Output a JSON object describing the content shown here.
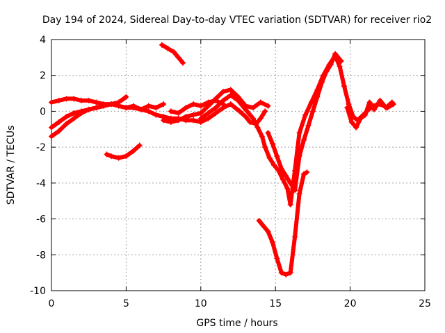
{
  "chart_data": {
    "type": "scatter",
    "title": "Day 194 of 2024, Sidereal Day-to-day VTEC variation (SDTVAR) for receiver rio2",
    "xlabel": "GPS time / hours",
    "ylabel": "SDTVAR / TECUs",
    "xlim": [
      0,
      25
    ],
    "ylim": [
      -10,
      4
    ],
    "xticks": [
      "0",
      "5",
      "10",
      "15",
      "20",
      "25"
    ],
    "yticks": [
      "4",
      "2",
      "0",
      "-2",
      "-4",
      "-6",
      "-8",
      "-10"
    ],
    "grid": true,
    "color": "#ff0000",
    "marker": "plus",
    "series": [
      {
        "x": [
          0.0,
          0.5,
          1.0,
          1.5,
          2.0,
          2.5,
          3.0,
          3.5,
          4.0,
          4.5,
          5.0,
          5.5,
          6.0,
          6.5,
          7.0,
          7.5,
          8.0,
          8.5,
          9.0,
          9.5,
          10.0,
          10.5,
          11.0,
          11.5,
          12.0,
          12.3,
          12.6,
          13.0,
          13.3,
          13.7,
          14.0,
          14.3
        ],
        "y": [
          0.5,
          0.6,
          0.7,
          0.7,
          0.6,
          0.6,
          0.5,
          0.4,
          0.4,
          0.3,
          0.2,
          0.2,
          0.1,
          0.0,
          -0.2,
          -0.3,
          -0.4,
          -0.4,
          -0.5,
          -0.5,
          -0.6,
          -0.4,
          -0.1,
          0.2,
          0.4,
          0.2,
          0.0,
          -0.3,
          -0.6,
          -0.7,
          -0.4,
          0.0
        ]
      },
      {
        "x": [
          0.0,
          0.5,
          1.0,
          1.5,
          2.0,
          2.5,
          3.0,
          3.5,
          4.0,
          4.5,
          5.0
        ],
        "y": [
          -1.4,
          -1.1,
          -0.7,
          -0.4,
          -0.1,
          0.1,
          0.2,
          0.3,
          0.4,
          0.5,
          0.8
        ]
      },
      {
        "x": [
          0.0,
          0.5,
          1.0,
          1.5,
          2.0,
          2.5,
          3.0,
          3.5,
          4.0
        ],
        "y": [
          -0.9,
          -0.6,
          -0.3,
          -0.1,
          0.0,
          0.1,
          0.2,
          0.3,
          0.4
        ]
      },
      {
        "x": [
          3.7,
          4.0,
          4.5,
          5.0,
          5.5,
          5.9
        ],
        "y": [
          -2.4,
          -2.5,
          -2.6,
          -2.5,
          -2.2,
          -1.9
        ]
      },
      {
        "x": [
          5.0,
          5.5,
          6.0,
          6.5,
          7.0,
          7.5
        ],
        "y": [
          0.2,
          0.3,
          0.1,
          0.3,
          0.2,
          0.4
        ]
      },
      {
        "x": [
          7.4,
          7.8,
          8.2,
          8.5,
          8.8
        ],
        "y": [
          3.7,
          3.5,
          3.3,
          3.0,
          2.7
        ]
      },
      {
        "x": [
          7.5,
          8.0,
          8.5,
          9.0,
          9.5,
          10.0,
          10.5,
          11.0,
          11.5,
          12.0,
          12.5,
          13.0,
          13.5,
          14.0,
          14.5
        ],
        "y": [
          -0.5,
          -0.6,
          -0.5,
          -0.3,
          -0.2,
          -0.1,
          0.3,
          0.7,
          1.1,
          1.2,
          0.8,
          0.3,
          0.2,
          0.5,
          0.3
        ]
      },
      {
        "x": [
          8.0,
          8.5,
          9.0,
          9.5,
          10.0,
          10.5,
          11.0,
          11.5
        ],
        "y": [
          0.0,
          -0.1,
          0.2,
          0.4,
          0.3,
          0.5,
          0.6,
          0.4
        ]
      },
      {
        "x": [
          10.0,
          10.5,
          11.0,
          11.5,
          12.0,
          12.5,
          13.0,
          13.5,
          13.8,
          14.1,
          14.3,
          14.6,
          14.9,
          15.2,
          15.5,
          15.8,
          16.0,
          16.3,
          16.6,
          17.0,
          17.4,
          17.8,
          18.2,
          18.6,
          19.0,
          19.3,
          19.6,
          19.9,
          20.2,
          20.5,
          21.0,
          21.5,
          22.0,
          22.5,
          22.9
        ],
        "y": [
          -0.4,
          -0.1,
          0.2,
          0.6,
          0.9,
          0.6,
          0.1,
          -0.4,
          -0.9,
          -1.4,
          -2.0,
          -2.6,
          -3.0,
          -3.3,
          -3.8,
          -4.3,
          -5.2,
          -3.3,
          -1.2,
          -0.2,
          0.5,
          1.2,
          2.0,
          2.6,
          3.1,
          2.5,
          1.4,
          0.4,
          -0.3,
          -0.5,
          -0.1,
          0.3,
          0.4,
          0.2,
          0.4
        ]
      },
      {
        "x": [
          14.5,
          14.8,
          15.1,
          15.4,
          15.7,
          16.0,
          16.3,
          16.6,
          16.9,
          17.2,
          17.5,
          17.8,
          18.1,
          18.4,
          18.7,
          19.0,
          19.4
        ],
        "y": [
          -1.2,
          -1.8,
          -2.5,
          -3.2,
          -3.6,
          -4.0,
          -4.4,
          -2.5,
          -1.6,
          -0.8,
          0.0,
          0.8,
          1.6,
          2.2,
          2.6,
          3.2,
          2.8
        ]
      },
      {
        "x": [
          13.9,
          14.2,
          14.5,
          14.8,
          15.1,
          15.4,
          15.7,
          16.0,
          16.3,
          16.6,
          16.9,
          17.1
        ],
        "y": [
          -6.1,
          -6.4,
          -6.7,
          -7.3,
          -8.2,
          -9.0,
          -9.1,
          -9.0,
          -7.0,
          -4.6,
          -3.5,
          -3.4
        ]
      },
      {
        "x": [
          19.8,
          20.1,
          20.4,
          20.7,
          21.0,
          21.3,
          21.6,
          22.0,
          22.4,
          22.8
        ],
        "y": [
          0.2,
          -0.6,
          -0.9,
          -0.4,
          -0.2,
          0.5,
          0.1,
          0.6,
          0.2,
          0.5
        ]
      }
    ]
  }
}
